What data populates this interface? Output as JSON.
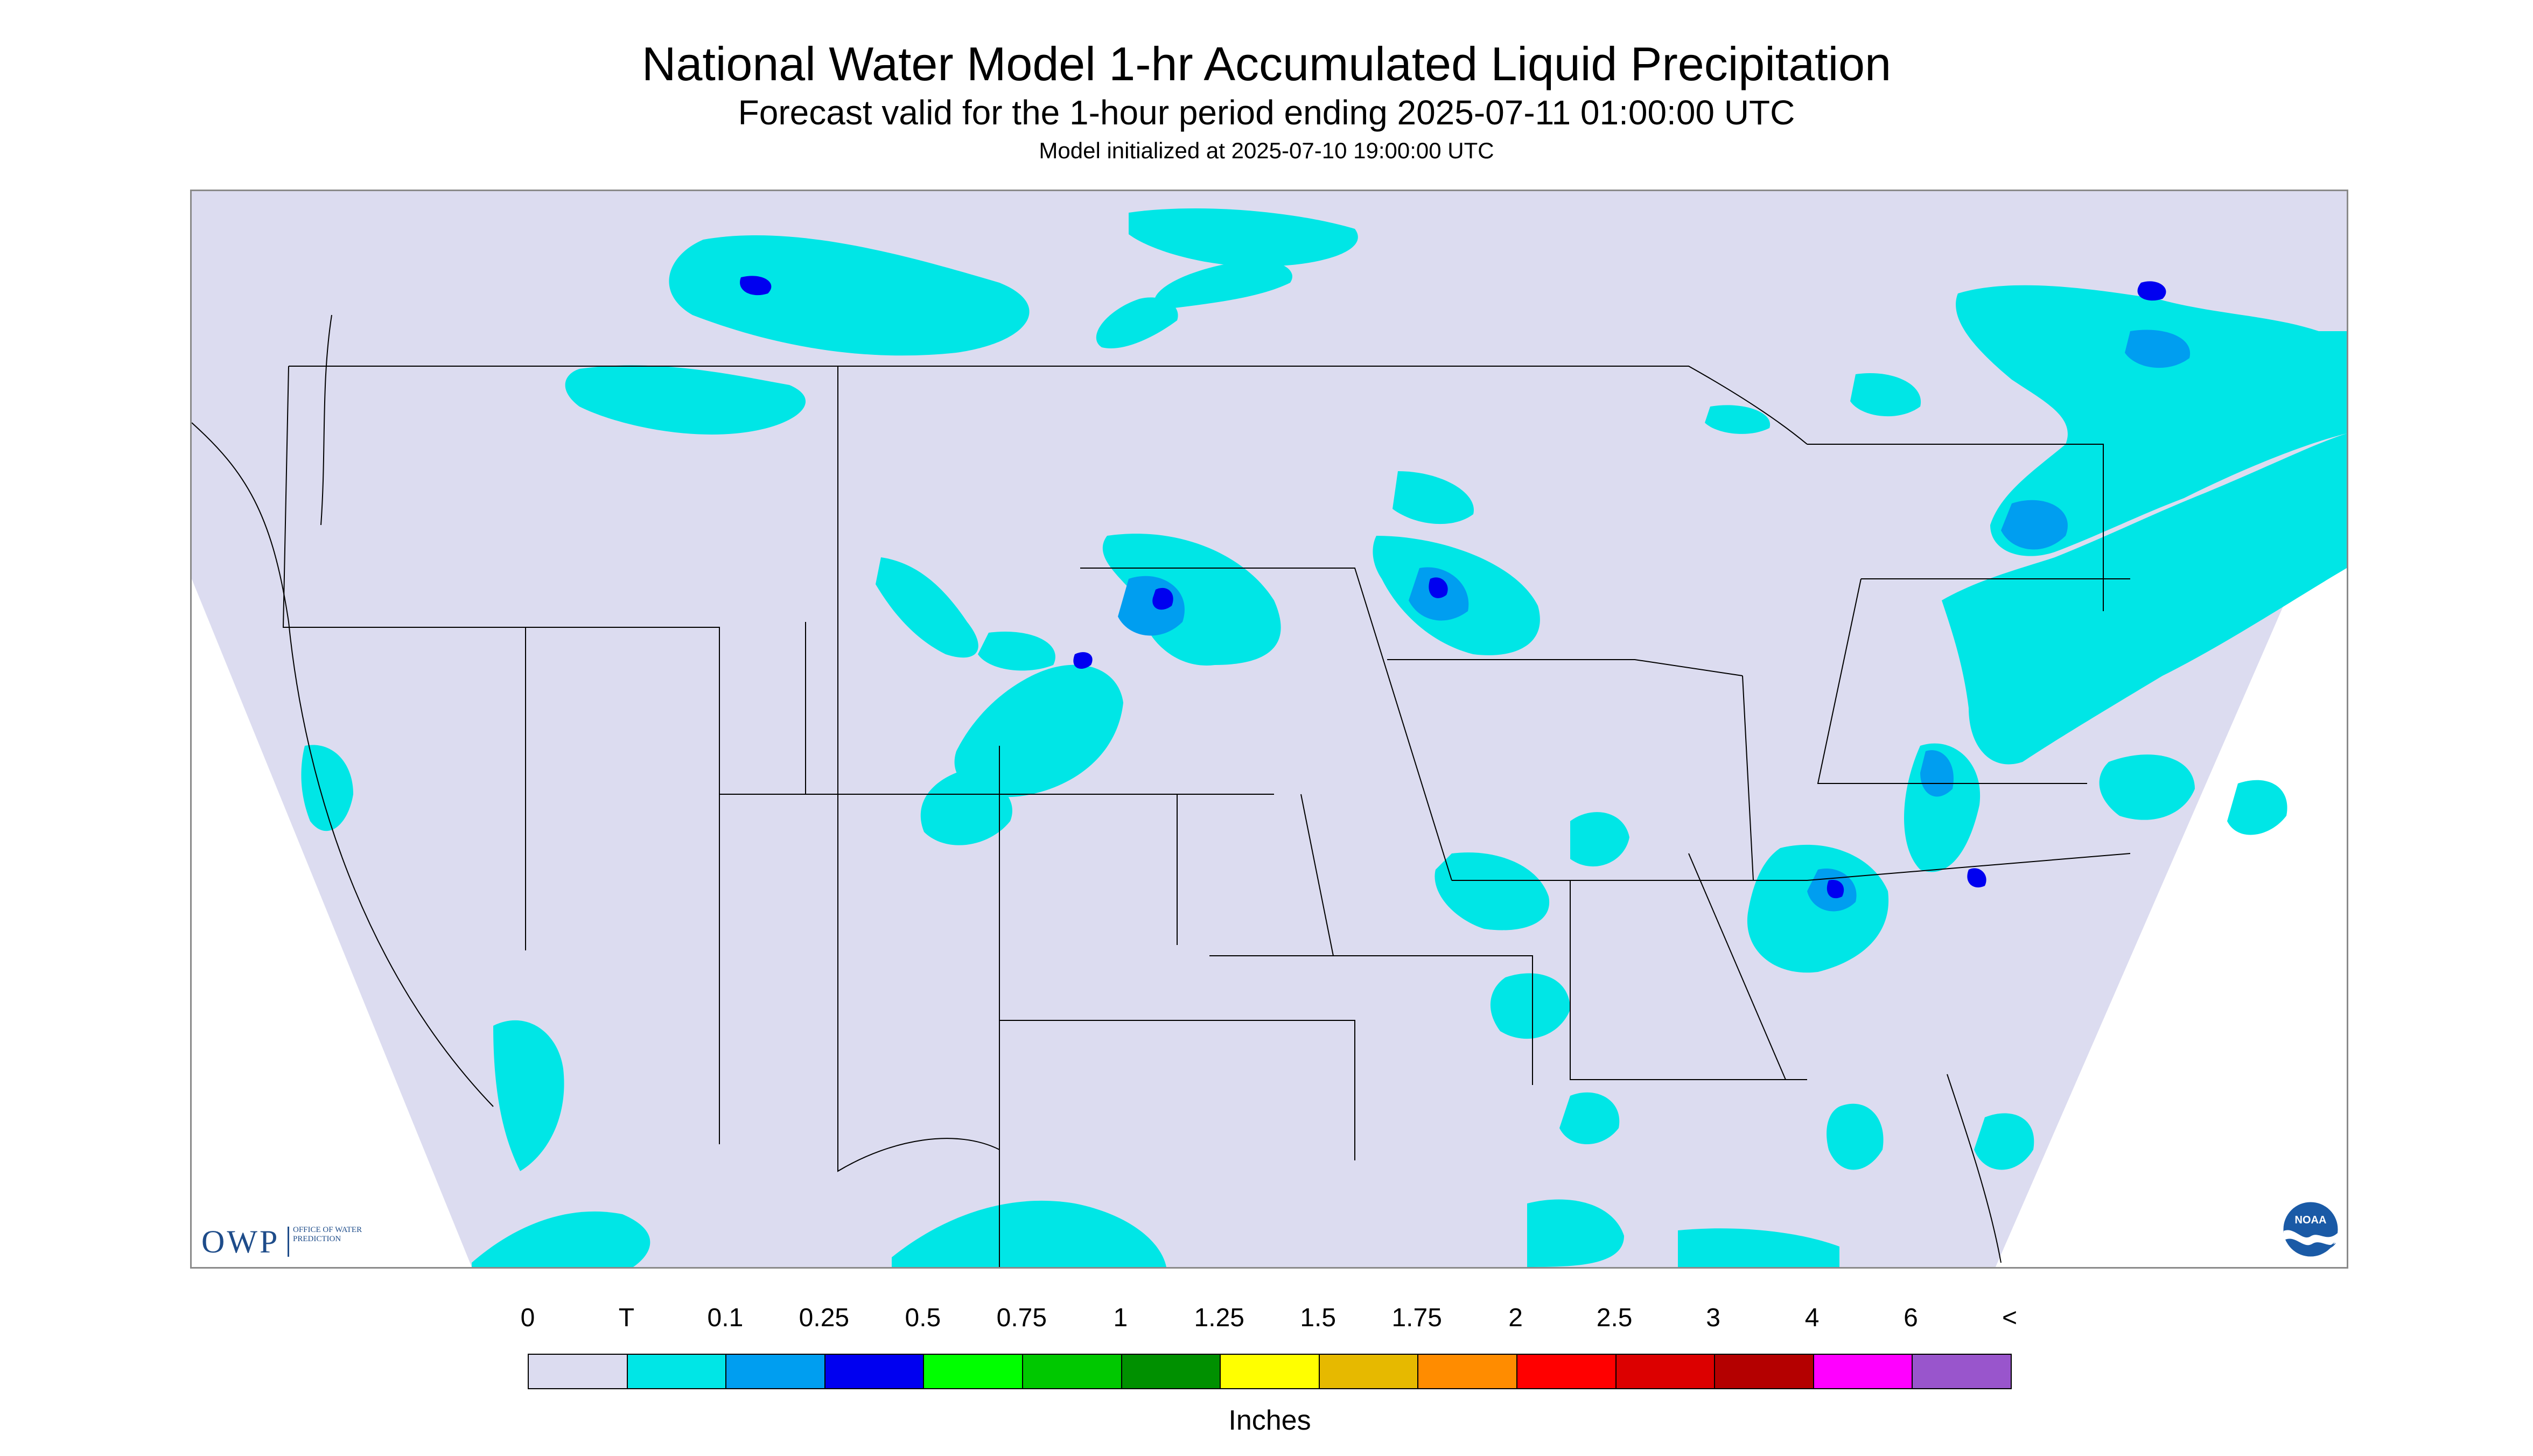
{
  "title": "National Water Model 1-hr Accumulated Liquid Precipitation",
  "subtitle": "Forecast valid for the 1-hour period ending 2025-07-11 01:00:00 UTC",
  "init_line": "Model initialized at 2025-07-10 19:00:00 UTC",
  "logos": {
    "owp_text": "OWP",
    "owp_sub": "Office of Water Prediction",
    "noaa_text": "NOAA"
  },
  "legend": {
    "labels": [
      "0",
      "T",
      "0.1",
      "0.25",
      "0.5",
      "0.75",
      "1",
      "1.25",
      "1.5",
      "1.75",
      "2",
      "2.5",
      "3",
      "4",
      "6",
      "<"
    ],
    "colors": [
      "#dcdcf0",
      "#00e6e6",
      "#009ef0",
      "#0000f0",
      "#00ff00",
      "#00c800",
      "#009000",
      "#ffff00",
      "#e6b900",
      "#ff8c00",
      "#ff0000",
      "#dc0000",
      "#b40000",
      "#ff00ff",
      "#9955cc"
    ],
    "units": "Inches"
  },
  "map": {
    "background_color": "#dcdcf0",
    "outside_color": "#ffffff",
    "border_color": "#000000"
  }
}
